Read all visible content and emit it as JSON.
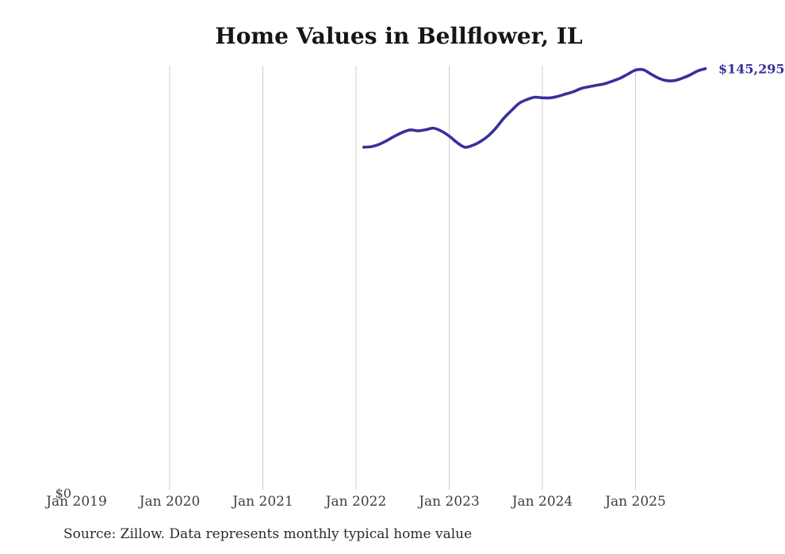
{
  "chart": {
    "title": "Home Values in Bellflower, IL",
    "source": "Source: Zillow. Data represents monthly typical home value",
    "end_label": "$145,295",
    "y_zero_label": "$0"
  },
  "chart_data": {
    "type": "line",
    "title": "Home Values in Bellflower, IL",
    "series_name": "Monthly typical home value",
    "unit": "USD",
    "line_color": "#37309a",
    "grid_color": "#cccccc",
    "legend_position": "none",
    "annotation": "$145,295",
    "latest_value": 145295,
    "ylim": [
      0,
      146000
    ],
    "y_axis_labels": [
      "$0"
    ],
    "x_ticks": [
      {
        "label": "Jan 2019",
        "month": 0,
        "gridline": false
      },
      {
        "label": "Jan 2020",
        "month": 12,
        "gridline": true
      },
      {
        "label": "Jan 2021",
        "month": 24,
        "gridline": true
      },
      {
        "label": "Jan 2022",
        "month": 36,
        "gridline": true
      },
      {
        "label": "Jan 2023",
        "month": 48,
        "gridline": true
      },
      {
        "label": "Jan 2024",
        "month": 60,
        "gridline": true
      },
      {
        "label": "Jan 2025",
        "month": 72,
        "gridline": true
      }
    ],
    "series_start_month": "Feb 2022",
    "series_start_month_offset": 37,
    "months": [
      "Feb 2022",
      "Mar 2022",
      "Apr 2022",
      "May 2022",
      "Jun 2022",
      "Jul 2022",
      "Aug 2022",
      "Sep 2022",
      "Oct 2022",
      "Nov 2022",
      "Dec 2022",
      "Jan 2023",
      "Feb 2023",
      "Mar 2023",
      "Apr 2023",
      "May 2023",
      "Jun 2023",
      "Jul 2023",
      "Aug 2023",
      "Sep 2023",
      "Oct 2023",
      "Nov 2023",
      "Dec 2023",
      "Jan 2024",
      "Feb 2024",
      "Mar 2024",
      "Apr 2024",
      "May 2024",
      "Jun 2024",
      "Jul 2024",
      "Aug 2024",
      "Sep 2024",
      "Oct 2024",
      "Nov 2024",
      "Dec 2024",
      "Jan 2025",
      "Feb 2025",
      "Mar 2025",
      "Apr 2025",
      "May 2025",
      "Jun 2025",
      "Jul 2025",
      "Aug 2025",
      "Sep 2025",
      "Oct 2025"
    ],
    "values": [
      118400,
      118600,
      119400,
      120700,
      122200,
      123500,
      124300,
      124000,
      124400,
      124900,
      123900,
      122200,
      120000,
      118400,
      119000,
      120300,
      122200,
      124900,
      128200,
      130900,
      133400,
      134700,
      135500,
      135300,
      135300,
      135800,
      136600,
      137400,
      138500,
      139100,
      139600,
      140100,
      141000,
      142000,
      143400,
      144800,
      144900,
      143400,
      142000,
      141200,
      141200,
      142000,
      143100,
      144500,
      145295
    ]
  }
}
